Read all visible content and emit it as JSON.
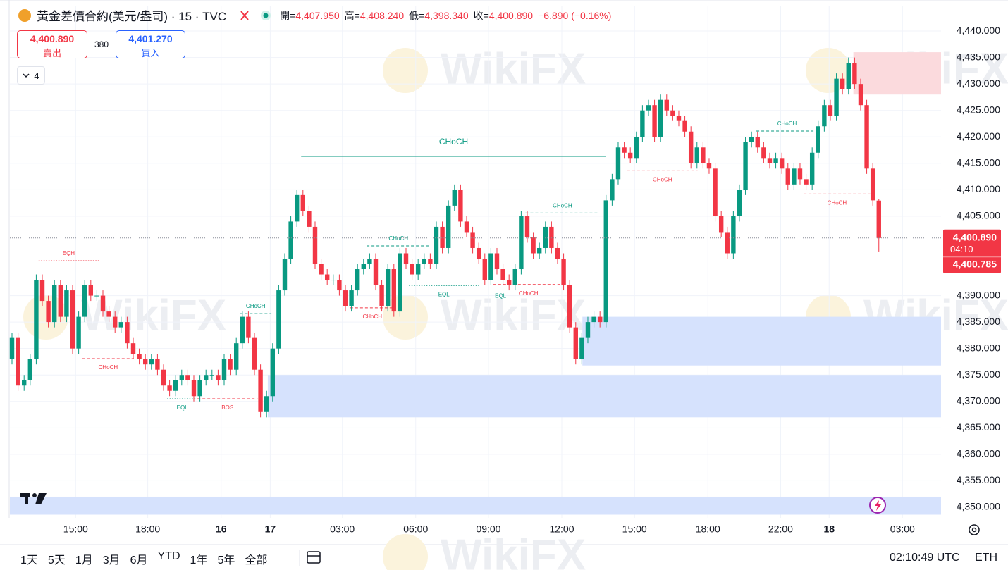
{
  "header": {
    "title": "黃金差價合約(美元/盎司) · 15 · TVC",
    "ohlc": [
      {
        "label": "開=",
        "value": "4,407.950"
      },
      {
        "label": "高=",
        "value": "4,408.240"
      },
      {
        "label": "低=",
        "value": "4,398.340"
      },
      {
        "label": "收=",
        "value": "4,400.890"
      }
    ],
    "change": "−6.890 (−0.16%)"
  },
  "trade": {
    "sell_price": "4,400.890",
    "sell_label": "賣出",
    "spread": "380",
    "buy_price": "4,401.270",
    "buy_label": "買入"
  },
  "indicators_count": "4",
  "watermark": "WikiFX",
  "toolbar": {
    "ranges": [
      "1天",
      "5天",
      "1月",
      "3月",
      "6月",
      "YTD",
      "1年",
      "5年",
      "全部"
    ],
    "clock": "02:10:49 UTC",
    "session": "ETH"
  },
  "chart_data": {
    "type": "candlestick",
    "up_color": "#089981",
    "down_color": "#f23645",
    "grid": true,
    "xlim": [
      -0.35,
      153.26
    ],
    "ylim": [
      4348,
      4444.8
    ],
    "xticks": [
      {
        "value": 10.5,
        "label": "15:00"
      },
      {
        "value": 22.4,
        "label": "18:00"
      },
      {
        "value": 34.5,
        "label": "16"
      },
      {
        "value": 42.6,
        "label": "17"
      },
      {
        "value": 54.5,
        "label": "03:00"
      },
      {
        "value": 66.6,
        "label": "06:00"
      },
      {
        "value": 78.6,
        "label": "09:00"
      },
      {
        "value": 90.7,
        "label": "12:00"
      },
      {
        "value": 102.7,
        "label": "15:00"
      },
      {
        "value": 114.8,
        "label": "18:00"
      },
      {
        "value": 126.8,
        "label": "22:00"
      },
      {
        "value": 134.8,
        "label": "18"
      },
      {
        "value": 146.9,
        "label": "03:00"
      }
    ],
    "yticks": [
      {
        "value": 4440,
        "label": "4,440.000"
      },
      {
        "value": 4435,
        "label": "4,435.000"
      },
      {
        "value": 4430,
        "label": "4,430.000"
      },
      {
        "value": 4425,
        "label": "4,425.000"
      },
      {
        "value": 4420,
        "label": "4,420.000"
      },
      {
        "value": 4415,
        "label": "4,415.000"
      },
      {
        "value": 4410,
        "label": "4,410.000"
      },
      {
        "value": 4405,
        "label": "4,405.000"
      },
      {
        "value": 4390,
        "label": "4,390.000"
      },
      {
        "value": 4385,
        "label": "4,385.000"
      },
      {
        "value": 4380,
        "label": "4,380.000"
      },
      {
        "value": 4375,
        "label": "4,375.000"
      },
      {
        "value": 4370,
        "label": "4,370.000"
      },
      {
        "value": 4365,
        "label": "4,365.000"
      },
      {
        "value": 4360,
        "label": "4,360.000"
      },
      {
        "value": 4355,
        "label": "4,355.000"
      },
      {
        "value": 4350,
        "label": "4,350.000"
      }
    ],
    "open": [
      4378,
      4382,
      4373,
      4374,
      4378,
      4393,
      4389,
      4385,
      4392,
      4386,
      4391,
      4380,
      4386,
      4392,
      4390,
      4390,
      4387,
      4386,
      4384,
      4385,
      4381,
      4379,
      4378,
      4377,
      4378,
      4376,
      4373,
      4372,
      4374,
      4375,
      4374,
      4371,
      4374,
      4375,
      4375,
      4374,
      4378,
      4376,
      4381,
      4386,
      4382,
      4376,
      4368,
      4371,
      4380,
      4391,
      4397,
      4404,
      4409,
      4406,
      4403,
      4396,
      4394,
      4393,
      4393,
      4391,
      4388,
      4391,
      4395,
      4396,
      4397,
      4392,
      4388,
      4395,
      4387,
      4398,
      4396,
      4394,
      4396,
      4397,
      4396,
      4403,
      4399,
      4407,
      4410,
      4404,
      4402,
      4399,
      4397,
      4393,
      4398,
      4395,
      4393,
      4392,
      4395,
      4405,
      4401,
      4398,
      4399,
      4403,
      4399,
      4397,
      4392,
      4384,
      4378,
      4382,
      4385,
      4386,
      4385,
      4408,
      4412,
      4418,
      4417,
      4416,
      4420,
      4425,
      4426,
      4420,
      4427,
      4425,
      4424,
      4423,
      4421,
      4415,
      4418,
      4415,
      4414,
      4405,
      4402,
      4398,
      4405,
      4410,
      4419,
      4420,
      4418,
      4416,
      4415,
      4416,
      4414,
      4411,
      4414,
      4412,
      4411,
      4417,
      4422,
      4426,
      4424,
      4431,
      4429,
      4434,
      4430,
      4426,
      4414,
      4407.95
    ],
    "high": [
      4383,
      4383,
      4375,
      4379,
      4394,
      4394,
      4390,
      4393,
      4393,
      4392,
      4392,
      4387,
      4393,
      4393,
      4391,
      4391,
      4388,
      4387,
      4386,
      4386,
      4382,
      4380,
      4379,
      4379,
      4379,
      4377,
      4374,
      4375,
      4376,
      4376,
      4375,
      4375,
      4376,
      4376,
      4376,
      4379,
      4379,
      4382,
      4387,
      4387,
      4383,
      4377,
      4372,
      4381,
      4392,
      4398,
      4405,
      4410,
      4410,
      4407,
      4404,
      4397,
      4395,
      4394,
      4394,
      4392,
      4392,
      4396,
      4397,
      4398,
      4398,
      4393,
      4396,
      4396,
      4399,
      4399,
      4397,
      4397,
      4398,
      4398,
      4404,
      4404,
      4408,
      4411,
      4411,
      4405,
      4403,
      4400,
      4398,
      4399,
      4399,
      4396,
      4394,
      4396,
      4406,
      4406,
      4402,
      4400,
      4404,
      4404,
      4400,
      4398,
      4393,
      4385,
      4383,
      4386,
      4387,
      4387,
      4409,
      4413,
      4419,
      4419,
      4418,
      4421,
      4426,
      4427,
      4427,
      4428,
      4428,
      4426,
      4425,
      4424,
      4422,
      4419,
      4419,
      4416,
      4415,
      4406,
      4403,
      4406,
      4411,
      4420,
      4421,
      4421,
      4419,
      4417,
      4417,
      4417,
      4415,
      4415,
      4415,
      4413,
      4418,
      4423,
      4427,
      4427,
      4432,
      4432,
      4435,
      4435,
      4431,
      4427,
      4415,
      4408.24
    ],
    "low": [
      4377,
      4372,
      4372,
      4373,
      4377,
      4388,
      4384,
      4384,
      4385,
      4385,
      4379,
      4379,
      4385,
      4389,
      4389,
      4386,
      4385,
      4383,
      4383,
      4380,
      4378,
      4377,
      4376,
      4376,
      4375,
      4372,
      4371,
      4371,
      4373,
      4373,
      4370,
      4370,
      4373,
      4374,
      4373,
      4373,
      4375,
      4375,
      4380,
      4381,
      4375,
      4367,
      4367,
      4370,
      4379,
      4390,
      4396,
      4403,
      4405,
      4402,
      4395,
      4393,
      4392,
      4392,
      4390,
      4387,
      4387,
      4390,
      4394,
      4395,
      4391,
      4387,
      4387,
      4386,
      4386,
      4395,
      4393,
      4393,
      4395,
      4395,
      4395,
      4398,
      4398,
      4406,
      4403,
      4401,
      4398,
      4396,
      4392,
      4392,
      4394,
      4392,
      4391,
      4391,
      4394,
      4400,
      4397,
      4397,
      4398,
      4398,
      4396,
      4391,
      4383,
      4377,
      4377,
      4381,
      4384,
      4384,
      4384,
      4407,
      4411,
      4416,
      4415,
      4415,
      4419,
      4424,
      4419,
      4419,
      4424,
      4423,
      4422,
      4420,
      4414,
      4414,
      4414,
      4413,
      4404,
      4401,
      4397,
      4397,
      4404,
      4409,
      4418,
      4417,
      4415,
      4414,
      4414,
      4413,
      4410,
      4410,
      4411,
      4410,
      4410,
      4416,
      4421,
      4423,
      4423,
      4428,
      4428,
      4429,
      4425,
      4413,
      4407,
      4398.34
    ],
    "close": [
      4382,
      4373,
      4374,
      4378,
      4393,
      4389,
      4385,
      4392,
      4386,
      4391,
      4380,
      4386,
      4392,
      4390,
      4390,
      4387,
      4386,
      4384,
      4385,
      4381,
      4379,
      4378,
      4377,
      4378,
      4376,
      4373,
      4372,
      4374,
      4375,
      4374,
      4371,
      4374,
      4375,
      4375,
      4374,
      4378,
      4376,
      4381,
      4386,
      4382,
      4376,
      4368,
      4371,
      4380,
      4391,
      4397,
      4404,
      4409,
      4406,
      4403,
      4396,
      4394,
      4393,
      4393,
      4391,
      4388,
      4391,
      4395,
      4396,
      4397,
      4392,
      4388,
      4395,
      4387,
      4398,
      4396,
      4394,
      4396,
      4397,
      4396,
      4403,
      4399,
      4407,
      4410,
      4404,
      4402,
      4399,
      4397,
      4393,
      4398,
      4395,
      4393,
      4392,
      4395,
      4405,
      4401,
      4398,
      4399,
      4403,
      4399,
      4397,
      4392,
      4384,
      4378,
      4382,
      4385,
      4386,
      4385,
      4408,
      4412,
      4418,
      4417,
      4416,
      4420,
      4425,
      4426,
      4420,
      4427,
      4425,
      4424,
      4423,
      4421,
      4415,
      4418,
      4415,
      4414,
      4405,
      4402,
      4398,
      4405,
      4410,
      4419,
      4420,
      4418,
      4416,
      4415,
      4416,
      4414,
      4411,
      4414,
      4412,
      4411,
      4417,
      4422,
      4426,
      4424,
      4431,
      4429,
      4434,
      4430,
      4426,
      4414,
      4408,
      4400.89
    ],
    "zones": [
      {
        "x0": -0.35,
        "x1": 153.26,
        "top": 4352,
        "bottom": 4348.6,
        "color": "#d6e2fd"
      },
      {
        "x0": 42.2,
        "x1": 153.26,
        "top": 4375,
        "bottom": 4367,
        "color": "#d6e2fd"
      },
      {
        "x0": 94.1,
        "x1": 153.26,
        "top": 4386,
        "bottom": 4376.8,
        "color": "#d6e2fd"
      },
      {
        "x0": 138.8,
        "x1": 153.26,
        "top": 4436,
        "bottom": 4428,
        "color": "#fbdadd"
      }
    ],
    "annotations": [
      {
        "text": "EQH",
        "x0": 4.4,
        "x1": 14.3,
        "y": 4396.6,
        "color": "#f23645",
        "style": "dotted",
        "side": "above"
      },
      {
        "text": "CHoCH",
        "x0": 11.6,
        "x1": 20.1,
        "y": 4378.1,
        "color": "#f23645",
        "style": "dashed",
        "side": "below"
      },
      {
        "text": "EQL",
        "x0": 25.6,
        "x1": 30.6,
        "y": 4370.5,
        "color": "#089981",
        "style": "dotted",
        "side": "below"
      },
      {
        "text": "BOS",
        "x0": 30.6,
        "x1": 40.5,
        "y": 4370.5,
        "color": "#f23645",
        "style": "dashed",
        "side": "below"
      },
      {
        "text": "CHoCH",
        "x0": 37.6,
        "x1": 42.8,
        "y": 4386.6,
        "color": "#089981",
        "style": "dashed",
        "side": "above"
      },
      {
        "text": "CHoCH",
        "x0": 47.7,
        "x1": 98,
        "y": 4416.3,
        "color": "#089981",
        "style": "solid",
        "side": "above"
      },
      {
        "text": "CHoCH",
        "x0": 55.8,
        "x1": 63.1,
        "y": 4387.7,
        "color": "#f23645",
        "style": "dashed",
        "side": "below"
      },
      {
        "text": "CHoCH",
        "x0": 58.5,
        "x1": 69,
        "y": 4399.4,
        "color": "#089981",
        "style": "dashed",
        "side": "above"
      },
      {
        "text": "EQL",
        "x0": 65.5,
        "x1": 77,
        "y": 4391.9,
        "color": "#089981",
        "style": "dotted",
        "side": "below"
      },
      {
        "text": "EQL",
        "x0": 77.7,
        "x1": 83.5,
        "y": 4391.6,
        "color": "#089981",
        "style": "dotted",
        "side": "below"
      },
      {
        "text": "CHoCH",
        "x0": 79.4,
        "x1": 91,
        "y": 4392.1,
        "color": "#f23645",
        "style": "dashed",
        "side": "below"
      },
      {
        "text": "CHoCH",
        "x0": 84.7,
        "x1": 96.9,
        "y": 4405.6,
        "color": "#089981",
        "style": "dashed",
        "side": "above"
      },
      {
        "text": "CHoCH",
        "x0": 101.5,
        "x1": 113.1,
        "y": 4413.6,
        "color": "#f23645",
        "style": "dashed",
        "side": "below"
      },
      {
        "text": "CHoCH",
        "x0": 122.8,
        "x1": 132.9,
        "y": 4421.1,
        "color": "#089981",
        "style": "dashed",
        "side": "above"
      },
      {
        "text": "CHoCH",
        "x0": 130.6,
        "x1": 141.6,
        "y": 4409.2,
        "color": "#f23645",
        "style": "dashed",
        "side": "below"
      }
    ],
    "price_tag": {
      "value": 4400.89,
      "label": "4,400.890",
      "countdown": "04:10",
      "second": {
        "value": 4400.785,
        "label": "4,400.785"
      },
      "color": "#f23645"
    }
  }
}
